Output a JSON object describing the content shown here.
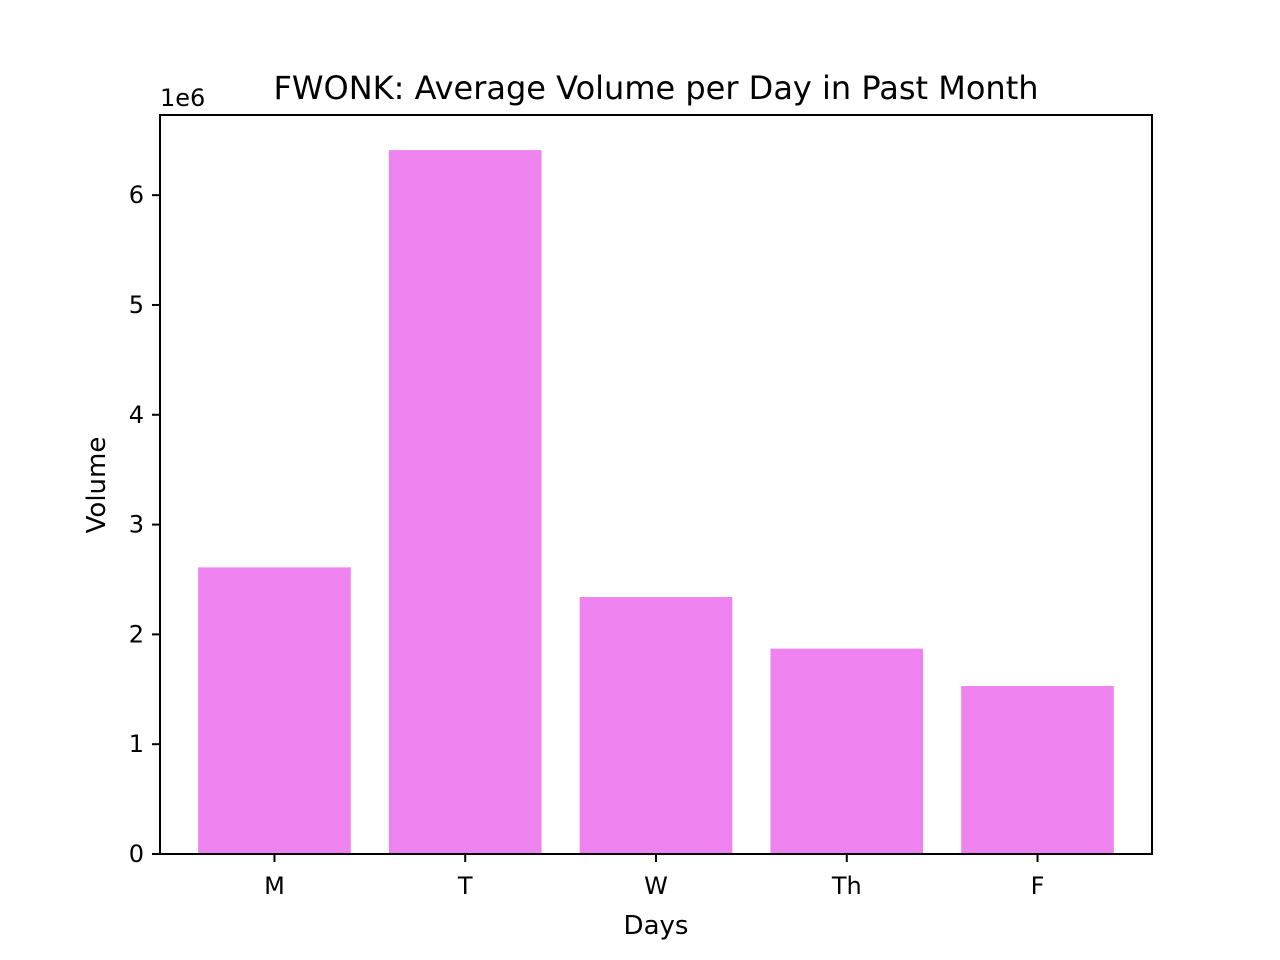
{
  "chart_data": {
    "type": "bar",
    "title": "FWONK: Average Volume per Day in Past Month",
    "xlabel": "Days",
    "ylabel": "Volume",
    "categories": [
      "M",
      "T",
      "W",
      "Th",
      "F"
    ],
    "values": [
      2610000,
      6410000,
      2340000,
      1870000,
      1530000
    ],
    "ylim": [
      0,
      6730000
    ],
    "yticks": [
      0,
      1,
      2,
      3,
      4,
      5,
      6
    ],
    "ytick_scale": 1000000,
    "offset_label": "1e6",
    "bar_color": "#ee82ee",
    "grid": false,
    "legend": "none"
  }
}
